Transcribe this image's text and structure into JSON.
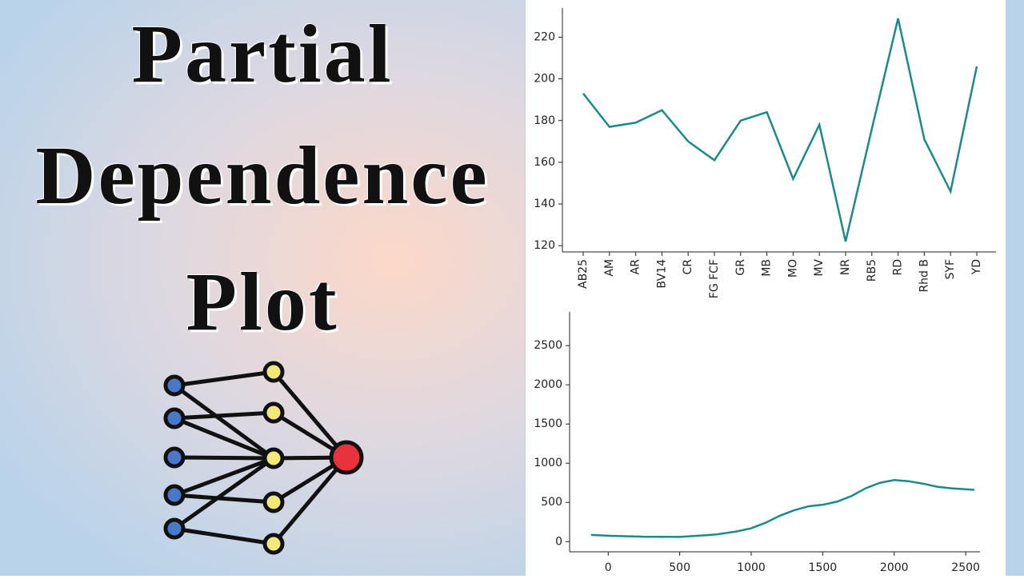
{
  "heading": {
    "lines": [
      "Partial",
      "Dependence",
      "Plot"
    ]
  },
  "chart_data": [
    {
      "type": "line",
      "color": "#1a8a8a",
      "categories": [
        "AB25",
        "AM",
        "AR",
        "BV14",
        "CR",
        "FG FCF",
        "GR",
        "MB",
        "MO",
        "MV",
        "NR",
        "RB5",
        "RD",
        "Rhd B",
        "SYF",
        "YD"
      ],
      "values": [
        193,
        177,
        179,
        185,
        170,
        161,
        180,
        184,
        152,
        178,
        122,
        176,
        229,
        171,
        146,
        206
      ],
      "ylim": [
        117,
        234
      ],
      "yticks": [
        120,
        140,
        160,
        180,
        200,
        220
      ]
    },
    {
      "type": "line",
      "color": "#1a8a8a",
      "x": [
        -120,
        0,
        250,
        500,
        750,
        900,
        1000,
        1100,
        1200,
        1300,
        1400,
        1500,
        1600,
        1700,
        1800,
        1900,
        2000,
        2100,
        2200,
        2300,
        2400,
        2560
      ],
      "values": [
        85,
        75,
        62,
        60,
        90,
        130,
        170,
        240,
        330,
        400,
        450,
        470,
        510,
        580,
        680,
        750,
        785,
        770,
        740,
        700,
        680,
        660
      ],
      "xlim": [
        -270,
        2600
      ],
      "ylim": [
        -130,
        2930
      ],
      "xticks": [
        0,
        500,
        1000,
        1500,
        2000,
        2500
      ],
      "yticks": [
        0,
        500,
        1000,
        1500,
        2000,
        2500
      ]
    }
  ]
}
